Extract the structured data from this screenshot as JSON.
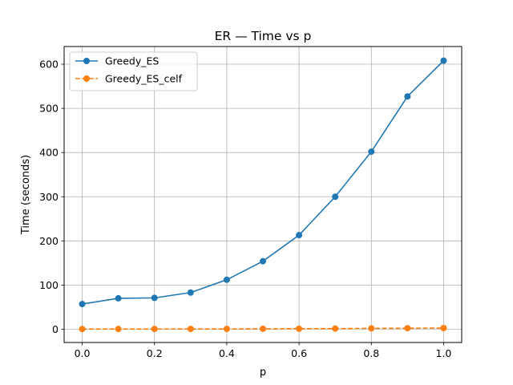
{
  "chart_data": {
    "type": "line",
    "title": "ER — Time vs p",
    "xlabel": "p",
    "ylabel": "Time (seconds)",
    "x": [
      0.0,
      0.1,
      0.2,
      0.3,
      0.4,
      0.5,
      0.6,
      0.7,
      0.8,
      0.9,
      1.0
    ],
    "xlim": [
      -0.05,
      1.05
    ],
    "ylim": [
      -30,
      640
    ],
    "x_ticks": [
      "0.0",
      "0.2",
      "0.4",
      "0.6",
      "0.8",
      "1.0"
    ],
    "y_ticks": [
      "0",
      "100",
      "200",
      "300",
      "400",
      "500",
      "600"
    ],
    "grid": true,
    "legend_position": "top-left",
    "series": [
      {
        "name": "Greedy_ES",
        "color": "#1f77b4",
        "line_style": "solid",
        "marker": "circle",
        "values": [
          57,
          70,
          71,
          83,
          112,
          154,
          213,
          300,
          402,
          527,
          608
        ]
      },
      {
        "name": "Greedy_ES_celf",
        "color": "#ff7f0e",
        "line_style": "dashed",
        "marker": "circle",
        "values": [
          0.5,
          0.6,
          0.6,
          0.7,
          0.8,
          1.0,
          1.2,
          1.5,
          1.9,
          2.3,
          2.7
        ]
      }
    ]
  }
}
